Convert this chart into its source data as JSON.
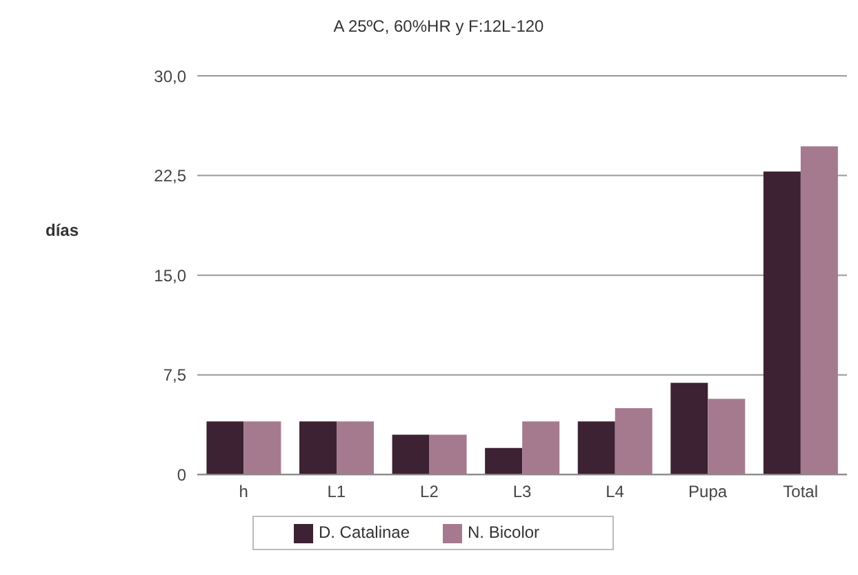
{
  "chart_data": {
    "type": "bar",
    "title": "A 25ºC, 60%HR y F:12L-120",
    "ylabel": "días",
    "categories": [
      "h",
      "L1",
      "L2",
      "L3",
      "L4",
      "Pupa",
      "Total"
    ],
    "series": [
      {
        "name": "D. Catalinae",
        "color": "#3d2233",
        "values": [
          4,
          4,
          3,
          2,
          4,
          6.9,
          22.8
        ]
      },
      {
        "name": "N. Bicolor",
        "color": "#a67a8e",
        "values": [
          4,
          4,
          3,
          4,
          5,
          5.7,
          24.7
        ]
      }
    ],
    "ylim": [
      0,
      30
    ],
    "yticks": [
      {
        "value": 0,
        "label": "0"
      },
      {
        "value": 7.5,
        "label": "7,5"
      },
      {
        "value": 15,
        "label": "15,0"
      },
      {
        "value": 22.5,
        "label": "22,5"
      },
      {
        "value": 30,
        "label": "30,0"
      }
    ],
    "grid": "y",
    "legend": "bottom"
  }
}
